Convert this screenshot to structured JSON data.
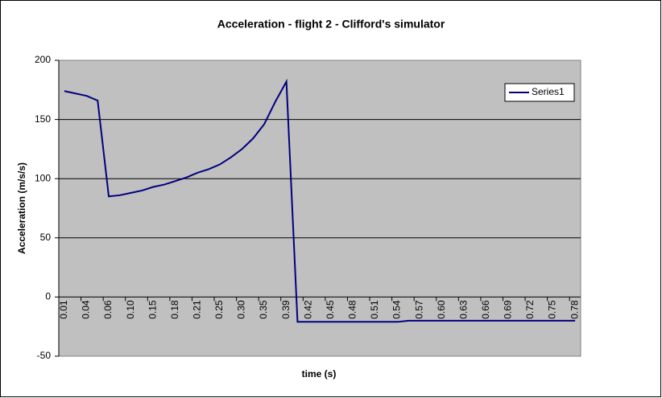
{
  "chart_data": {
    "type": "line",
    "title": "Acceleration - flight 2 - Clifford's simulator",
    "x_label": "time (s)",
    "y_label": "Acceleration (m/s/s)",
    "categories": [
      "0.01",
      null,
      "0.04",
      null,
      "0.06",
      null,
      "0.10",
      null,
      "0.15",
      null,
      "0.18",
      null,
      "0.21",
      null,
      "0.25",
      null,
      "0.30",
      null,
      "0.35",
      null,
      "0.39",
      null,
      "0.42",
      null,
      "0.45",
      null,
      "0.48",
      null,
      "0.51",
      null,
      "0.54",
      null,
      "0.57",
      null,
      "0.60",
      null,
      "0.63",
      null,
      "0.66",
      null,
      "0.69",
      null,
      "0.72",
      null,
      "0.75",
      null,
      "0.78"
    ],
    "series": [
      {
        "name": "Series1",
        "color": "#000080",
        "values": [
          174,
          172,
          170,
          166,
          85,
          86,
          88,
          90,
          93,
          95,
          98,
          101,
          105,
          108,
          112,
          118,
          125,
          134,
          146,
          165,
          182,
          -21,
          -21,
          -21,
          -21,
          -21,
          -21,
          -21,
          -21,
          -21,
          -21,
          -20,
          -20,
          -20,
          -20,
          -20,
          -20,
          -20,
          -20,
          -20,
          -20,
          -20,
          -20,
          -20,
          -20,
          -20,
          -20
        ]
      }
    ],
    "ylim": [
      -50,
      200
    ],
    "yticks": [
      -50,
      0,
      50,
      100,
      150,
      200
    ],
    "grid": true,
    "legend": "right"
  }
}
